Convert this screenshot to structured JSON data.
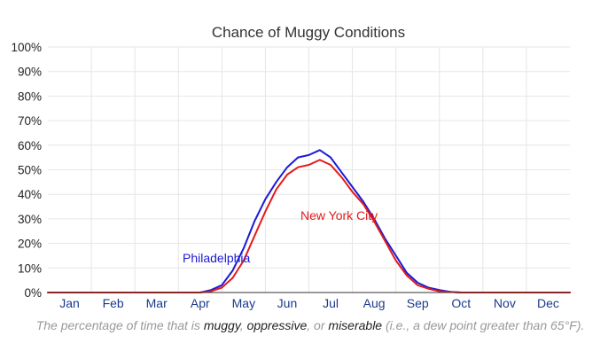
{
  "chart_data": {
    "type": "line",
    "title": "Chance of Muggy Conditions",
    "xlabel": "",
    "ylabel": "",
    "ylim": [
      0,
      100
    ],
    "y_tick_labels": [
      "0%",
      "10%",
      "20%",
      "30%",
      "40%",
      "50%",
      "60%",
      "70%",
      "80%",
      "90%",
      "100%"
    ],
    "x_tick_labels": [
      "Jan",
      "Feb",
      "Mar",
      "Apr",
      "May",
      "Jun",
      "Jul",
      "Aug",
      "Sep",
      "Oct",
      "Nov",
      "Dec"
    ],
    "grid": true,
    "x": [
      0,
      3.5,
      3.75,
      4.0,
      4.25,
      4.5,
      4.75,
      5.0,
      5.25,
      5.5,
      5.75,
      6.0,
      6.25,
      6.5,
      6.75,
      7.0,
      7.25,
      7.5,
      7.75,
      8.0,
      8.25,
      8.5,
      8.75,
      9.0,
      9.25,
      9.5,
      9.75,
      10.0,
      10.5,
      12
    ],
    "series": [
      {
        "name": "Philadelphia",
        "color": "#1a1ad6",
        "values": [
          0,
          0,
          1,
          3,
          9,
          18,
          29,
          38,
          45,
          51,
          55,
          56,
          58,
          55,
          49,
          43,
          37,
          30,
          22,
          15,
          8,
          4,
          2,
          1,
          0.3,
          0,
          0,
          0,
          0,
          0
        ]
      },
      {
        "name": "New York City",
        "color": "#e31a1a",
        "values": [
          0,
          0,
          0.5,
          2,
          6,
          13,
          23,
          33,
          42,
          48,
          51,
          52,
          54,
          52,
          47,
          41,
          36,
          29,
          21,
          13,
          7,
          3,
          1.5,
          0.5,
          0.2,
          0,
          0,
          0,
          0,
          0
        ]
      }
    ]
  },
  "caption": {
    "pre": "The percentage of time that is ",
    "term1": "muggy",
    "sep1": ", ",
    "term2": "oppressive",
    "sep2": ", or ",
    "term3": "miserable",
    "post": " (i.e., a dew point greater than 65°F)."
  }
}
